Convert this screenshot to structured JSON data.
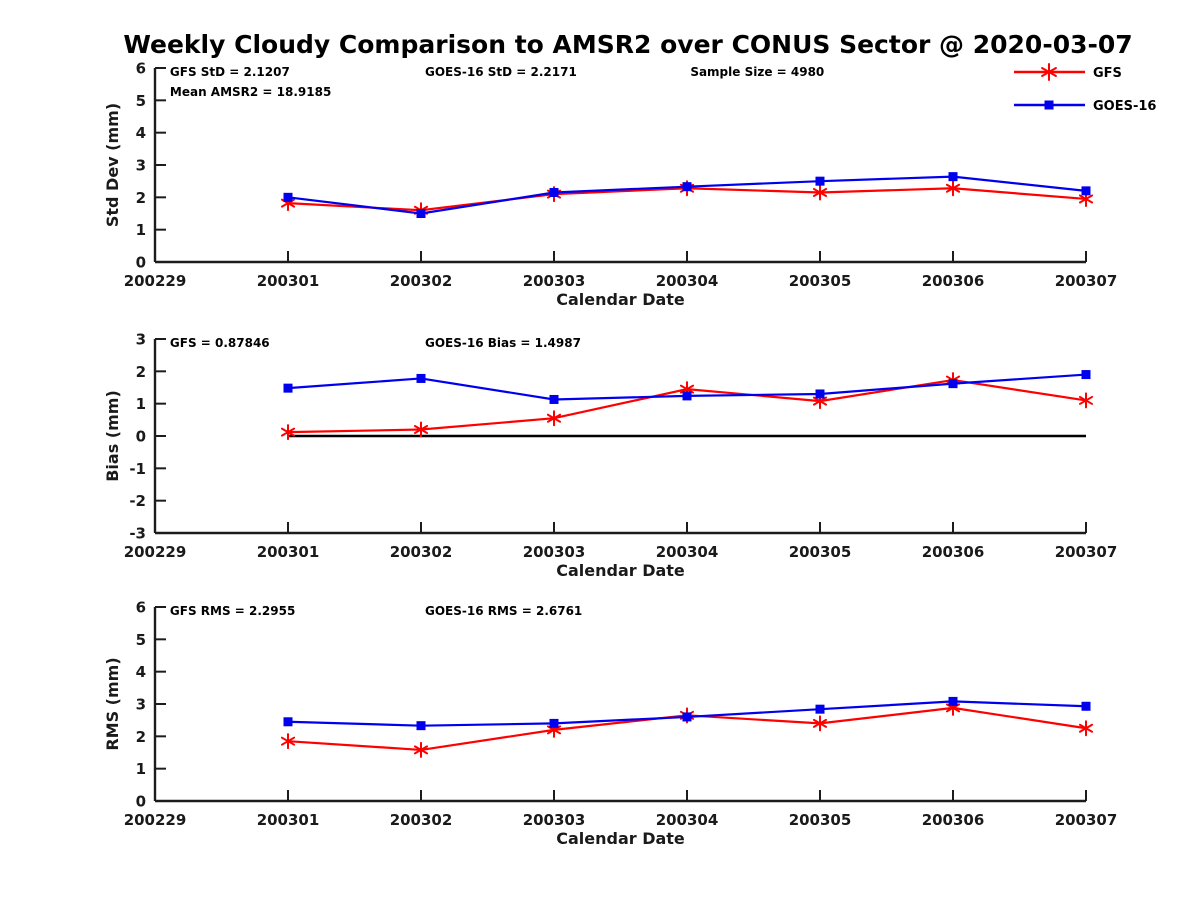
{
  "title": "Weekly Cloudy Comparison to AMSR2 over CONUS Sector @ 2020-03-07",
  "colors": {
    "gfs": "#ff0000",
    "goes16": "#0000ee",
    "axis": "#1c1c1c",
    "zero_line": "#000000"
  },
  "legend": {
    "items": [
      {
        "label": "GFS",
        "color": "#ff0000",
        "marker": "star"
      },
      {
        "label": "GOES-16",
        "color": "#0000ee",
        "marker": "square"
      }
    ]
  },
  "x_axis": {
    "label": "Calendar Date",
    "ticks": [
      "200229",
      "200301",
      "200302",
      "200303",
      "200304",
      "200305",
      "200306",
      "200307"
    ]
  },
  "chart_data": [
    {
      "type": "line",
      "name": "std-dev",
      "ylabel": "Std Dev (mm)",
      "xlabel": "Calendar Date",
      "ylim": [
        0,
        6
      ],
      "yticks": [
        0,
        1,
        2,
        3,
        4,
        5,
        6
      ],
      "grid": false,
      "legend_position": "top-right-outside",
      "annotations": [
        {
          "text": "GFS StD = 2.1207",
          "fx": 0.016,
          "row": 0
        },
        {
          "text": "GOES-16 StD = 2.2171",
          "fx": 0.29,
          "row": 0
        },
        {
          "text": "Sample Size = 4980",
          "fx": 0.575,
          "row": 0
        },
        {
          "text": "Mean AMSR2 = 18.9185",
          "fx": 0.016,
          "row": 1
        }
      ],
      "x": [
        "200301",
        "200302",
        "200303",
        "200304",
        "200305",
        "200306",
        "200307"
      ],
      "series": [
        {
          "name": "GFS",
          "color": "#ff0000",
          "marker": "star",
          "values": [
            1.82,
            1.6,
            2.1,
            2.28,
            2.15,
            2.28,
            1.95
          ]
        },
        {
          "name": "GOES-16",
          "color": "#0000ee",
          "marker": "square",
          "values": [
            2.0,
            1.5,
            2.15,
            2.33,
            2.5,
            2.64,
            2.2
          ]
        }
      ],
      "zero_line": false,
      "show_legend": true
    },
    {
      "type": "line",
      "name": "bias",
      "ylabel": "Bias (mm)",
      "xlabel": "Calendar Date",
      "ylim": [
        -3,
        3
      ],
      "yticks": [
        -3,
        -2,
        -1,
        0,
        1,
        2,
        3
      ],
      "grid": false,
      "annotations": [
        {
          "text": "GFS = 0.87846",
          "fx": 0.016,
          "row": 0
        },
        {
          "text": "GOES-16 Bias  = 1.4987",
          "fx": 0.29,
          "row": 0
        }
      ],
      "x": [
        "200301",
        "200302",
        "200303",
        "200304",
        "200305",
        "200306",
        "200307"
      ],
      "series": [
        {
          "name": "GFS",
          "color": "#ff0000",
          "marker": "star",
          "values": [
            0.12,
            0.2,
            0.55,
            1.45,
            1.08,
            1.73,
            1.1
          ]
        },
        {
          "name": "GOES-16",
          "color": "#0000ee",
          "marker": "square",
          "values": [
            1.48,
            1.78,
            1.13,
            1.24,
            1.3,
            1.62,
            1.9
          ]
        }
      ],
      "zero_line": true,
      "show_legend": false
    },
    {
      "type": "line",
      "name": "rms",
      "ylabel": "RMS (mm)",
      "xlabel": "Calendar Date",
      "ylim": [
        0,
        6
      ],
      "yticks": [
        0,
        1,
        2,
        3,
        4,
        5,
        6
      ],
      "grid": false,
      "annotations": [
        {
          "text": "GFS RMS = 2.2955",
          "fx": 0.016,
          "row": 0
        },
        {
          "text": "GOES-16 RMS = 2.6761",
          "fx": 0.29,
          "row": 0
        }
      ],
      "x": [
        "200301",
        "200302",
        "200303",
        "200304",
        "200305",
        "200306",
        "200307"
      ],
      "series": [
        {
          "name": "GFS",
          "color": "#ff0000",
          "marker": "star",
          "values": [
            1.85,
            1.58,
            2.2,
            2.65,
            2.4,
            2.88,
            2.25
          ]
        },
        {
          "name": "GOES-16",
          "color": "#0000ee",
          "marker": "square",
          "values": [
            2.45,
            2.33,
            2.4,
            2.6,
            2.84,
            3.08,
            2.93
          ]
        }
      ],
      "zero_line": false,
      "show_legend": false
    }
  ]
}
